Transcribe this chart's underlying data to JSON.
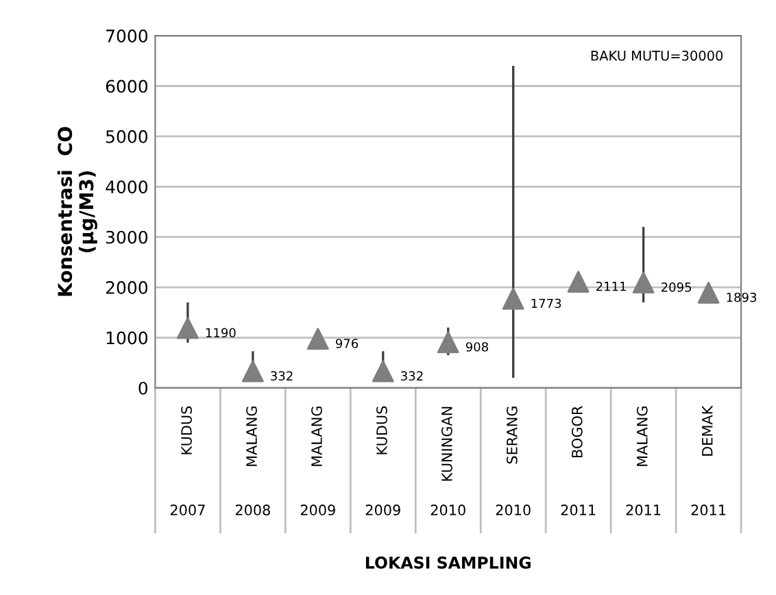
{
  "chart_data": {
    "type": "scatter",
    "ylabel": "Konsentrasi  CO\n(µg/M3)",
    "xlabel": "LOKASI SAMPLING",
    "categories": [
      "KUDUS",
      "MALANG",
      "MALANG",
      "KUDUS",
      "KUNINGAN",
      "SERANG",
      "BOGOR",
      "MALANG",
      "DEMAK"
    ],
    "annotations": [
      "2007",
      "2008",
      "2009",
      "2009",
      "2010",
      "2010",
      "2011",
      "2011",
      "2011",
      "BAKU MUTU=30000"
    ],
    "series": [
      {
        "color": "#7f7f7f",
        "values": [
          1190,
          332,
          976,
          332,
          908,
          1773,
          2111,
          2095,
          1893
        ],
        "errors": [
          [
            900,
            1700
          ],
          [
            200,
            730
          ],
          null,
          [
            200,
            730
          ],
          [
            650,
            1200
          ],
          [
            200,
            6400
          ],
          null,
          [
            1700,
            3200
          ],
          null
        ]
      }
    ],
    "data_labels": true,
    "marker": "triangle",
    "ylim": [
      0,
      7000
    ],
    "yticks": [
      0,
      1000,
      2000,
      3000,
      4000,
      5000,
      6000,
      7000
    ],
    "grid": "y"
  }
}
